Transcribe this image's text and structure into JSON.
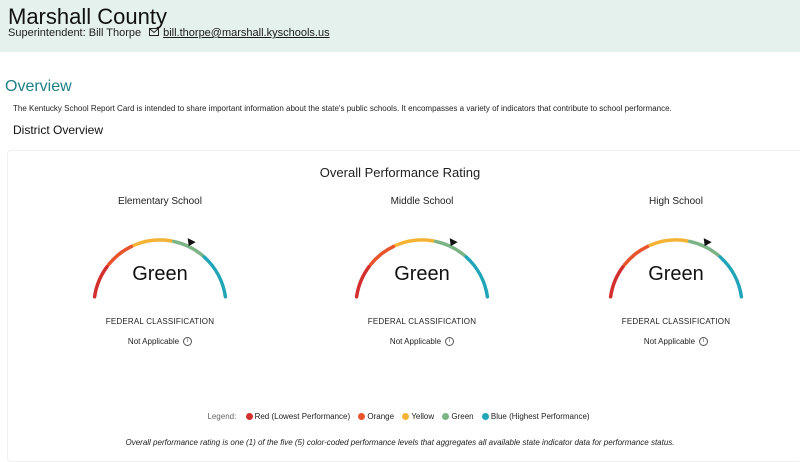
{
  "header": {
    "county": "Marshall County",
    "superintendent": "Superintendent: Bill Thorpe",
    "email": "bill.thorpe@marshall.kyschools.us",
    "mail_icon": "envelope-icon"
  },
  "overview": {
    "title": "Overview",
    "description": "The Kentucky School Report Card is intended to share important information about the state's public schools. It encompasses a variety of indicators that contribute to school performance."
  },
  "district": {
    "title": "District Overview"
  },
  "performance": {
    "title": "Overall Performance Rating",
    "schools": [
      {
        "name": "Elementary School",
        "rating": "Green",
        "federal_label": "FEDERAL CLASSIFICATION",
        "federal_value": "Not Applicable"
      },
      {
        "name": "Middle School",
        "rating": "Green",
        "federal_label": "FEDERAL CLASSIFICATION",
        "federal_value": "Not Applicable"
      },
      {
        "name": "High School",
        "rating": "Green",
        "federal_label": "FEDERAL CLASSIFICATION",
        "federal_value": "Not Applicable"
      }
    ]
  },
  "legend": {
    "label": "Legend:",
    "items": [
      {
        "label": "Red (Lowest Performance)",
        "color": "#d32f2f"
      },
      {
        "label": "Orange",
        "color": "#e8542b"
      },
      {
        "label": "Yellow",
        "color": "#f5b336"
      },
      {
        "label": "Green",
        "color": "#7cb387"
      },
      {
        "label": "Blue (Highest Performance)",
        "color": "#1fa4b8"
      }
    ]
  },
  "footnote": "Overall performance rating is one (1) of the five (5) color-coded performance levels that aggregates all available state indicator data for performance status.",
  "colors": {
    "header_bg": "#e4f1ec",
    "accent": "#1e7f86",
    "red": "#d32f2f",
    "orange": "#e8542b",
    "yellow": "#f5b336",
    "green": "#7cb387",
    "blue": "#1fa4b8"
  }
}
